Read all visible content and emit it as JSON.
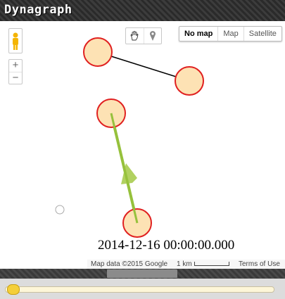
{
  "app": {
    "title": "Dynagraph"
  },
  "map_controls": {
    "zoom_in": "+",
    "zoom_out": "−",
    "map_types": [
      "No map",
      "Map",
      "Satellite"
    ],
    "selected_map_type": "No map"
  },
  "graph": {
    "nodes": [
      {
        "id": "n1"
      },
      {
        "id": "n2"
      },
      {
        "id": "n3"
      },
      {
        "id": "n4"
      }
    ],
    "edges": [
      {
        "from": "n1",
        "to": "n2",
        "style": "plain"
      },
      {
        "from": "n4",
        "to": "n3",
        "style": "arrow"
      }
    ],
    "colors": {
      "node_fill": "#fde2b4",
      "node_stroke": "#e02020",
      "edge": "#000000",
      "arrow": "#96c13c"
    }
  },
  "timestamp": "2014-12-16 00:00:00.000",
  "attribution": {
    "map_data": "Map data ©2015 Google",
    "scale": "1 km",
    "terms": "Terms of Use"
  },
  "timeline": {
    "position": 0
  }
}
